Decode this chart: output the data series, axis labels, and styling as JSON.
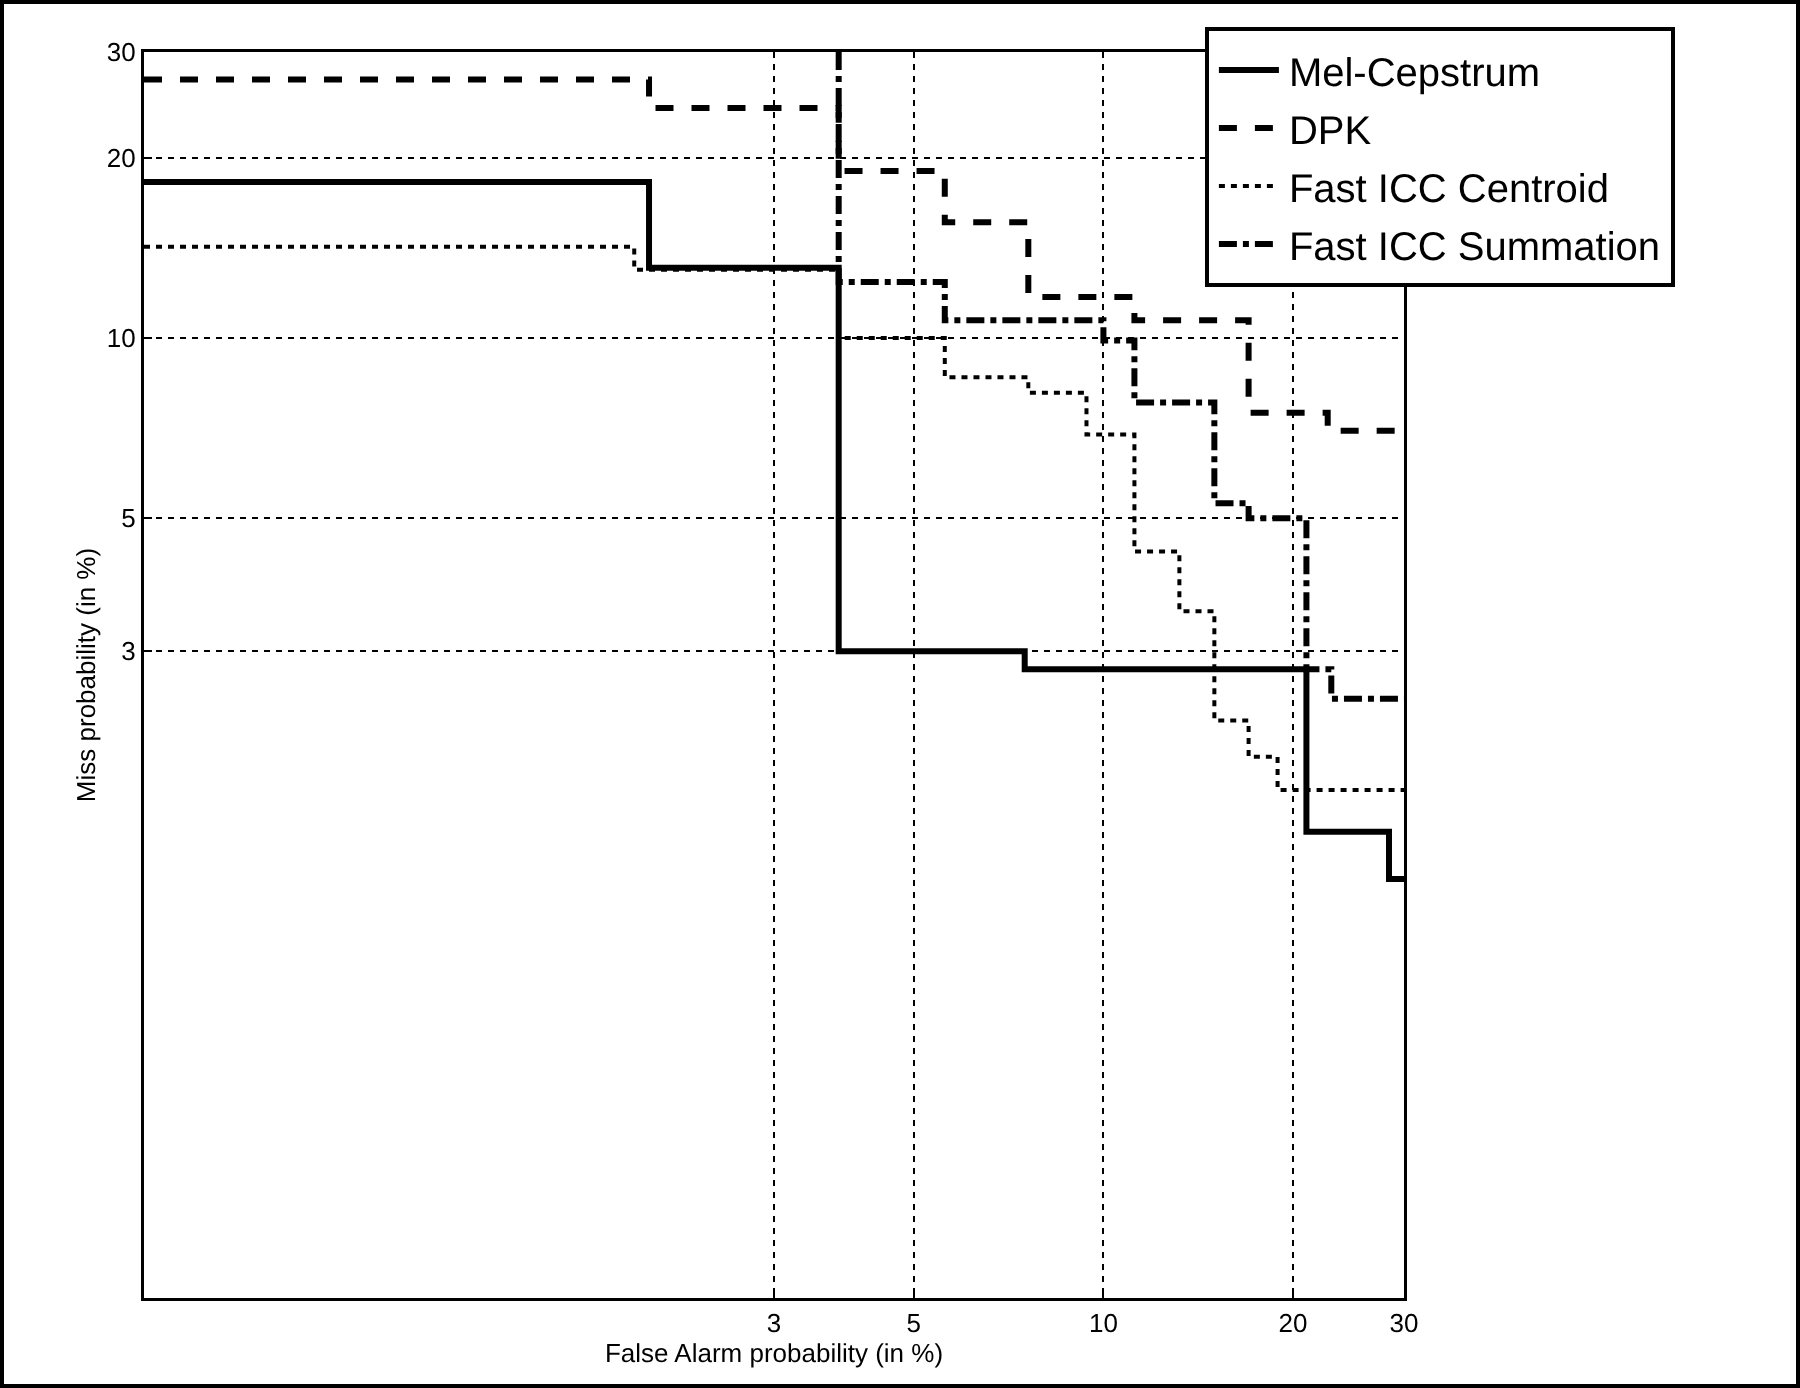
{
  "chart_data": {
    "type": "step",
    "xlabel": "False Alarm probability (in %)",
    "ylabel": "Miss probability (in %)",
    "xlim": [
      0.3,
      30
    ],
    "ylim": [
      0.25,
      30
    ],
    "xticks": [
      3,
      5,
      10,
      20,
      30
    ],
    "yticks": [
      3,
      5,
      10,
      20,
      30
    ],
    "grid": true,
    "legend": "top right",
    "marker": "none",
    "log": "xy",
    "series": [
      {
        "name": "Mel-Cepstrum",
        "color": "#000000",
        "line_style": "solid",
        "x": [
          0.3,
          1.9,
          3.8,
          7.5,
          21,
          28.4,
          30
        ],
        "values": [
          18.2,
          13.1,
          3.0,
          2.8,
          1.5,
          1.25,
          1.25
        ]
      },
      {
        "name": "DPK",
        "color": "#000000",
        "line_style": "dashed",
        "x": [
          0.3,
          1.9,
          3.8,
          5.6,
          7.6,
          11.2,
          17,
          22.7,
          30
        ],
        "values": [
          27,
          24.2,
          19,
          15.6,
          11.7,
          10.7,
          7.5,
          7.0,
          7.0
        ]
      },
      {
        "name": "Fast ICC Centroid",
        "color": "#000000",
        "line_style": "dotted",
        "x": [
          0.3,
          1.8,
          3.8,
          5.6,
          7.6,
          9.4,
          11.2,
          13.2,
          15,
          17,
          18.9,
          30
        ],
        "values": [
          14.2,
          13,
          10,
          8.6,
          8.1,
          6.9,
          4.4,
          3.5,
          2.3,
          2.0,
          1.76,
          1.76
        ]
      },
      {
        "name": "Fast ICC Summation",
        "color": "#000000",
        "line_style": "dashdot",
        "x": [
          3.8,
          3.8,
          5.6,
          10,
          11.2,
          15,
          17,
          21,
          23,
          30
        ],
        "values": [
          30,
          12.4,
          10.7,
          9.9,
          7.8,
          5.3,
          5.0,
          2.8,
          2.5,
          2.5
        ]
      }
    ]
  }
}
